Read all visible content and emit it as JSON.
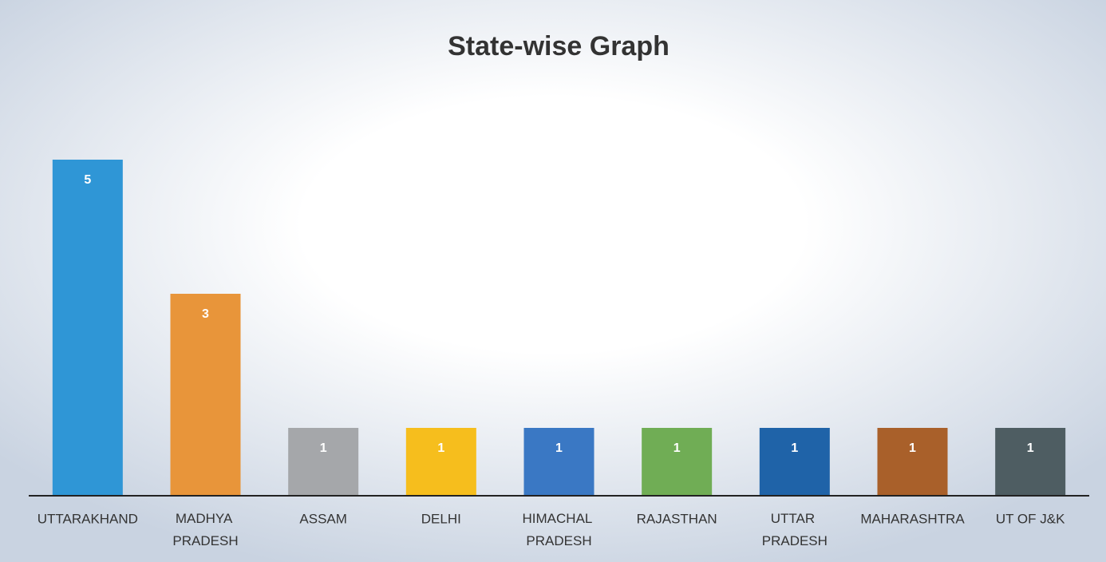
{
  "chart_data": {
    "type": "bar",
    "title": "State-wise Graph",
    "categories": [
      "UTTARAKHAND",
      "MADHYA PRADESH",
      "ASSAM",
      "DELHI",
      "HIMACHAL PRADESH",
      "RAJASTHAN",
      "UTTAR PRADESH",
      "MAHARASHTRA",
      "UT OF J&K"
    ],
    "values": [
      5,
      3,
      1,
      1,
      1,
      1,
      1,
      1,
      1
    ],
    "colors": [
      "#2f96d6",
      "#e8953a",
      "#a5a7aa",
      "#f6be1d",
      "#3a78c4",
      "#70ad55",
      "#1f63a8",
      "#a9602a",
      "#4e5d62"
    ]
  }
}
